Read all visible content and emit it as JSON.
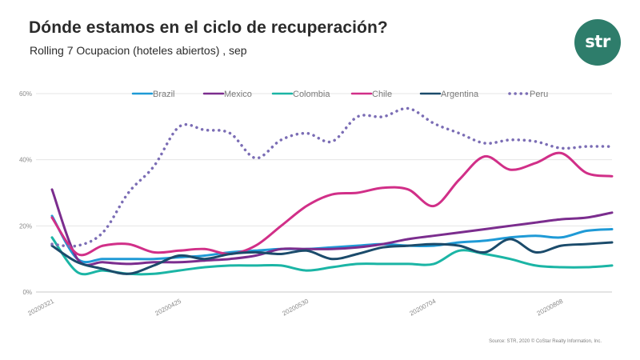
{
  "header": {
    "title": "Dónde estamos en el ciclo de recuperación?",
    "subtitle": "Rolling 7 Ocupacion (hoteles abiertos) , sep"
  },
  "logo": {
    "text": "str",
    "color": "#2e7d6b"
  },
  "footer": {
    "source": "Source: STR, 2020  © CoStar Realty Information, Inc."
  },
  "chart_data": {
    "type": "line",
    "title": "Dónde estamos en el ciclo de recuperación?",
    "subtitle": "Rolling 7 Ocupacion (hoteles abiertos) , sep",
    "xlabel": "",
    "ylabel": "",
    "ylim": [
      0,
      60
    ],
    "yticks": [
      0,
      20,
      40,
      60
    ],
    "ytick_labels": [
      "0%",
      "20%",
      "40%",
      "60%"
    ],
    "grid": true,
    "legend_position": "top",
    "x_index_range": [
      0,
      22
    ],
    "xticks": [
      {
        "index": 0,
        "label": "20200321"
      },
      {
        "index": 5,
        "label": "20200425"
      },
      {
        "index": 10,
        "label": "20200530"
      },
      {
        "index": 15,
        "label": "20200704"
      },
      {
        "index": 20,
        "label": "20200808"
      }
    ],
    "series": [
      {
        "name": "Brazil",
        "color": "#1f9ad6",
        "dash": "solid",
        "values": [
          23,
          10,
          10,
          10,
          10,
          10.5,
          11,
          12,
          12.5,
          13,
          13,
          13.5,
          14,
          14.5,
          14,
          14,
          15,
          15.5,
          16.5,
          17,
          16.5,
          18.5,
          19
        ]
      },
      {
        "name": "Mexico",
        "color": "#7b2d8e",
        "dash": "solid",
        "values": [
          31,
          10,
          9,
          8.5,
          9,
          9,
          9.5,
          10,
          11,
          13,
          13,
          13,
          13.5,
          14.5,
          16,
          17,
          18,
          19,
          20,
          21,
          22,
          22.5,
          24
        ]
      },
      {
        "name": "Colombia",
        "color": "#1bb5a5",
        "dash": "solid",
        "values": [
          16.5,
          6,
          6.5,
          5.5,
          5.5,
          6.5,
          7.5,
          8,
          8,
          8,
          6.5,
          7.5,
          8.5,
          8.5,
          8.5,
          8.5,
          12.5,
          11.5,
          10,
          8,
          7.5,
          7.5,
          8
        ]
      },
      {
        "name": "Chile",
        "color": "#d12f88",
        "dash": "solid",
        "values": [
          22.5,
          11.5,
          14,
          14.5,
          12,
          12.5,
          13,
          11.5,
          14,
          20,
          26,
          29.5,
          30,
          31.5,
          31,
          26,
          34,
          41,
          37,
          39,
          42,
          36,
          35
        ]
      },
      {
        "name": "Argentina",
        "color": "#1b4b6b",
        "dash": "solid",
        "values": [
          14,
          9,
          7,
          5.5,
          8,
          11,
          10,
          11.5,
          12,
          11.5,
          12.5,
          10,
          11.5,
          13.5,
          14,
          14.5,
          14,
          12,
          16,
          12,
          14,
          14.5,
          15
        ]
      },
      {
        "name": "Peru",
        "color": "#7b6db5",
        "dash": "dot",
        "values": [
          14.5,
          14,
          18,
          30,
          38,
          50,
          49,
          48,
          40.5,
          46,
          48,
          45.5,
          53,
          53,
          55.5,
          51,
          48,
          45,
          46,
          45.5,
          43.5,
          44,
          44
        ]
      }
    ]
  }
}
